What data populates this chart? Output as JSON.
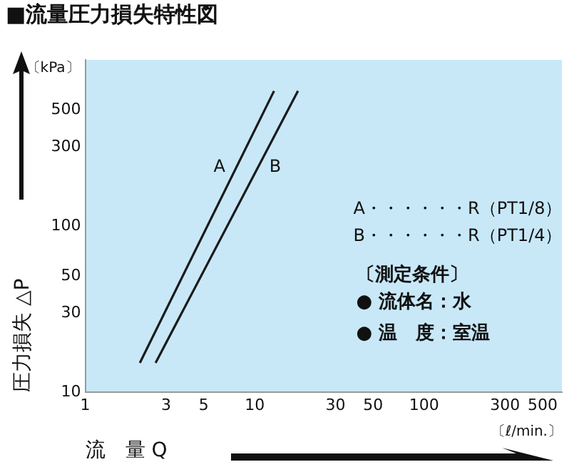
{
  "chart_data": {
    "type": "line",
    "title": "■流量圧力損失特性図",
    "xlabel": "流　量 Q",
    "ylabel": "圧力損失 △P",
    "annotations": [
      "〔kPa〕",
      "〔ℓ/min.〕",
      "A・・・・・・R（PT1/8）",
      "B・・・・・・R（PT1/4）",
      "〔測定条件〕",
      "● 流体名：水",
      "● 温　度：室温"
    ],
    "series": [
      {
        "name": "A",
        "color": "#1a1a1a",
        "x": [
          2.1,
          13
        ],
        "values": [
          15,
          650
        ]
      },
      {
        "name": "B",
        "color": "#1a1a1a",
        "x": [
          2.6,
          18
        ],
        "values": [
          15,
          650
        ]
      }
    ],
    "log": "xy",
    "xlim": [
      1,
      650
    ],
    "xticks": [
      1,
      3,
      5,
      10,
      30,
      50,
      100,
      300,
      500
    ],
    "ylim": [
      10,
      1000
    ],
    "yticks": [
      10,
      30,
      50,
      100,
      300,
      500
    ],
    "grid": false,
    "legend": false,
    "marker": "none",
    "line_style": "solid"
  }
}
